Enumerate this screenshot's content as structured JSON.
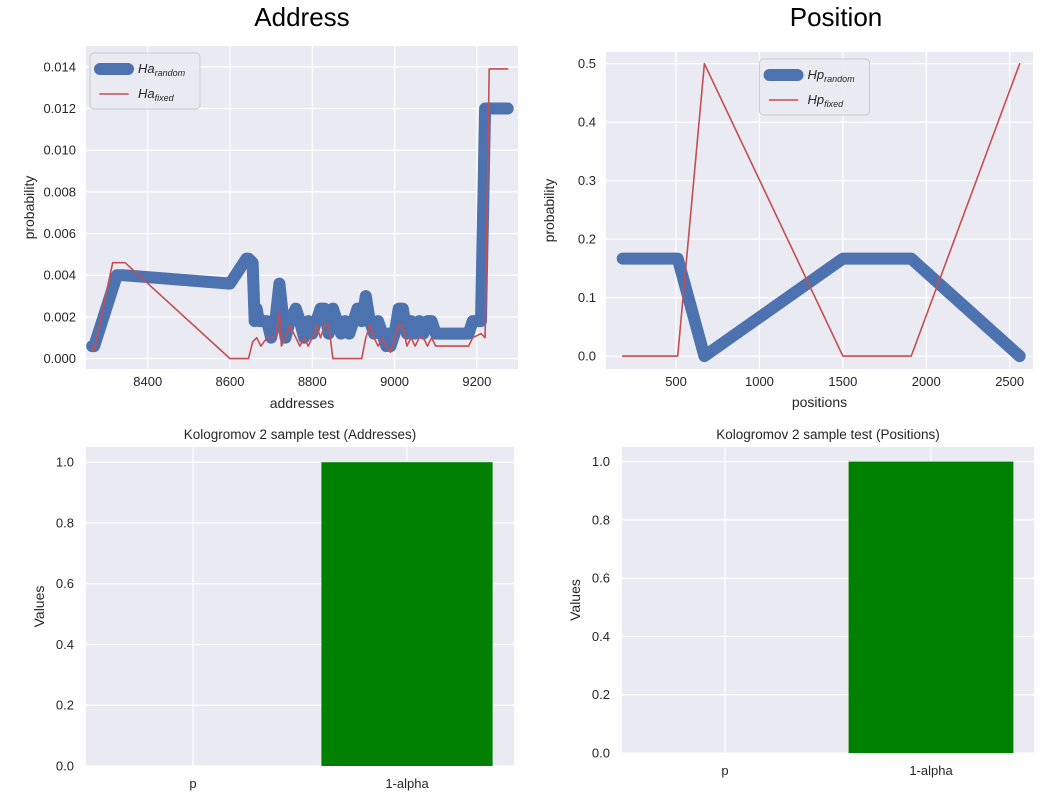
{
  "headings": {
    "left": "Address",
    "right": "Position"
  },
  "chart_data": [
    {
      "type": "line",
      "id": "addr",
      "title": "",
      "xlabel": "addresses",
      "ylabel": "probability",
      "xlim": [
        8250,
        9300
      ],
      "ylim": [
        -0.0005,
        0.015
      ],
      "xticks": [
        8400,
        8600,
        8800,
        9000,
        9200
      ],
      "yticks": [
        0.0,
        0.002,
        0.004,
        0.006,
        0.008,
        0.01,
        0.012,
        0.014
      ],
      "ytick_decimals": 3,
      "legend_loc": "top-left",
      "series": [
        {
          "name": "Ha",
          "subscript": "random",
          "color": "#4c72b0",
          "width": "thick",
          "x": [
            8265,
            8270,
            8325,
            8340,
            8600,
            8640,
            8645,
            8655,
            8660,
            8665,
            8670,
            8680,
            8690,
            8700,
            8710,
            8720,
            8730,
            8735,
            8745,
            8760,
            8770,
            8780,
            8790,
            8800,
            8810,
            8820,
            8830,
            8840,
            8845,
            8850,
            8860,
            8870,
            8880,
            8890,
            8900,
            8910,
            8920,
            8930,
            8935,
            8940,
            8950,
            8960,
            8970,
            8980,
            8985,
            8990,
            9000,
            9010,
            9020,
            9030,
            9040,
            9050,
            9060,
            9070,
            9080,
            9090,
            9100,
            9110,
            9120,
            9140,
            9180,
            9190,
            9210,
            9220,
            9230,
            9240,
            9250,
            9275
          ],
          "y": [
            0.0006,
            0.0006,
            0.004,
            0.004,
            0.0036,
            0.0048,
            0.0048,
            0.0046,
            0.0018,
            0.0024,
            0.0018,
            0.0018,
            0.0018,
            0.001,
            0.0018,
            0.0036,
            0.0018,
            0.001,
            0.0018,
            0.0024,
            0.0018,
            0.001,
            0.0018,
            0.0012,
            0.0018,
            0.0024,
            0.0024,
            0.0012,
            0.0018,
            0.0024,
            0.0018,
            0.0012,
            0.0018,
            0.0012,
            0.0018,
            0.0024,
            0.0018,
            0.003,
            0.0024,
            0.0018,
            0.0012,
            0.0018,
            0.0012,
            0.0006,
            0.0012,
            0.0006,
            0.0012,
            0.0024,
            0.0024,
            0.0012,
            0.0018,
            0.0012,
            0.0018,
            0.0012,
            0.0018,
            0.0018,
            0.0012,
            0.0012,
            0.0012,
            0.0012,
            0.0012,
            0.0018,
            0.0018,
            0.012,
            0.012,
            0.012,
            0.012,
            0.012
          ]
        },
        {
          "name": "Ha",
          "subscript": "fixed",
          "color": "#c44e52",
          "width": "thin",
          "x": [
            8265,
            8270,
            8315,
            8330,
            8345,
            8600,
            8625,
            8645,
            8655,
            8665,
            8675,
            8690,
            8700,
            8710,
            8720,
            8725,
            8735,
            8745,
            8760,
            8770,
            8780,
            8790,
            8800,
            8810,
            8820,
            8830,
            8840,
            8850,
            8860,
            8900,
            8920,
            8930,
            8940,
            8950,
            8960,
            8970,
            8980,
            8990,
            9000,
            9010,
            9020,
            9030,
            9040,
            9050,
            9060,
            9070,
            9080,
            9090,
            9100,
            9110,
            9120,
            9140,
            9180,
            9190,
            9210,
            9220,
            9230,
            9240,
            9250,
            9275
          ],
          "y": [
            0.0006,
            0.0004,
            0.0046,
            0.0046,
            0.0046,
            0.0,
            0.0,
            0.0,
            0.0008,
            0.001,
            0.0006,
            0.001,
            0.001,
            0.001,
            0.0022,
            0.0006,
            0.001,
            0.0016,
            0.001,
            0.0006,
            0.001,
            0.0006,
            0.001,
            0.0016,
            0.001,
            0.0016,
            0.0016,
            0.0,
            0.0,
            0.0,
            0.0,
            0.001,
            0.0016,
            0.001,
            0.0006,
            0.001,
            0.0006,
            0.0003,
            0.001,
            0.0016,
            0.0016,
            0.0006,
            0.001,
            0.0006,
            0.001,
            0.001,
            0.0006,
            0.001,
            0.0006,
            0.0006,
            0.0006,
            0.0006,
            0.0006,
            0.001,
            0.0012,
            0.001,
            0.0139,
            0.0139,
            0.0139,
            0.0139
          ]
        }
      ]
    },
    {
      "type": "line",
      "id": "pos",
      "title": "",
      "xlabel": "positions",
      "ylabel": "probability",
      "xlim": [
        80,
        2640
      ],
      "ylim": [
        -0.022,
        0.52
      ],
      "xticks": [
        500,
        1000,
        1500,
        2000,
        2500
      ],
      "yticks": [
        0.0,
        0.1,
        0.2,
        0.3,
        0.4,
        0.5
      ],
      "ytick_decimals": 1,
      "legend_loc": "top-center",
      "series": [
        {
          "name": "Hp",
          "subscript": "random",
          "color": "#4c72b0",
          "width": "thick",
          "x": [
            180,
            510,
            670,
            1500,
            1910,
            2560
          ],
          "y": [
            0.1667,
            0.1667,
            0.0,
            0.1667,
            0.1667,
            0.0
          ]
        },
        {
          "name": "Hp",
          "subscript": "fixed",
          "color": "#c44e52",
          "width": "thin",
          "x": [
            180,
            510,
            670,
            1500,
            1910,
            2560
          ],
          "y": [
            0.0,
            0.0,
            0.5,
            0.0,
            0.0,
            0.5
          ]
        }
      ]
    },
    {
      "type": "bar",
      "id": "ksaddr",
      "title": "Kologromov 2 sample test (Addresses)",
      "xlabel": "",
      "ylabel": "Values",
      "categories": [
        "p",
        "1-alpha"
      ],
      "values": [
        0.0,
        1.0
      ],
      "color": "#008000",
      "ylim": [
        0.0,
        1.05
      ],
      "yticks": [
        0.0,
        0.2,
        0.4,
        0.6,
        0.8,
        1.0
      ],
      "ytick_decimals": 1
    },
    {
      "type": "bar",
      "id": "kspos",
      "title": "Kologromov 2 sample test (Positions)",
      "xlabel": "",
      "ylabel": "Values",
      "categories": [
        "p",
        "1-alpha"
      ],
      "values": [
        0.0,
        1.0
      ],
      "color": "#008000",
      "ylim": [
        0.0,
        1.05
      ],
      "yticks": [
        0.0,
        0.2,
        0.4,
        0.6,
        0.8,
        1.0
      ],
      "ytick_decimals": 1
    }
  ]
}
